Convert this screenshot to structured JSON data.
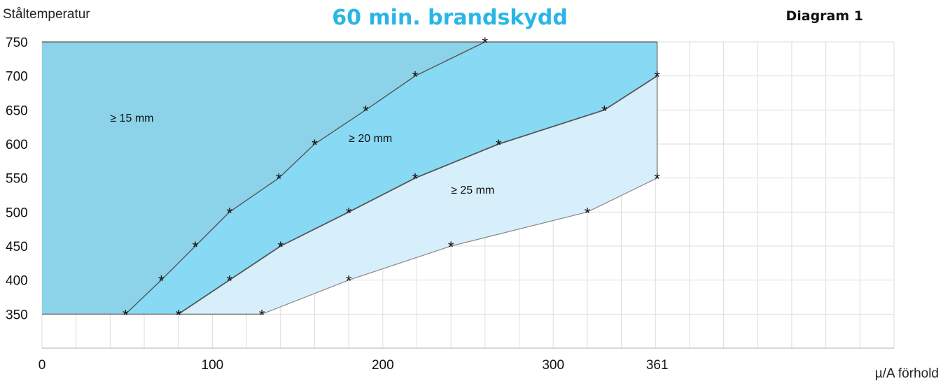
{
  "header": {
    "y_axis_title": "Ståltemperatur",
    "title": "60 min. brandskydd",
    "diagram_label": "Diagram 1",
    "x_axis_title": "µ/A förhold"
  },
  "colors": {
    "region_15": "#8cd2e8",
    "region_20": "#88d9f3",
    "region_25": "#d7eefb",
    "grid": "#dddddd",
    "line": "#555555",
    "title": "#29b6e6"
  },
  "chart_data": {
    "type": "area",
    "title": "60 min. brandskydd",
    "xlabel": "µ/A förhold",
    "ylabel": "Ståltemperatur",
    "xlim": [
      0,
      500
    ],
    "ylim": [
      300,
      750
    ],
    "x_ticks": [
      0,
      100,
      200,
      300,
      361
    ],
    "y_ticks": [
      350,
      400,
      450,
      500,
      550,
      600,
      650,
      700,
      750
    ],
    "grid": true,
    "series": [
      {
        "name": "≥ 15 mm",
        "points": [
          [
            49,
            350
          ],
          [
            70,
            400
          ],
          [
            90,
            450
          ],
          [
            110,
            500
          ],
          [
            139,
            550
          ],
          [
            160,
            600
          ],
          [
            190,
            650
          ],
          [
            219,
            700
          ],
          [
            260,
            750
          ]
        ]
      },
      {
        "name": "≥ 20 mm",
        "points": [
          [
            80,
            350
          ],
          [
            110,
            400
          ],
          [
            140,
            450
          ],
          [
            180,
            500
          ],
          [
            219,
            550
          ],
          [
            268,
            600
          ],
          [
            330,
            650
          ],
          [
            361,
            700
          ]
        ]
      },
      {
        "name": "≥ 25 mm",
        "points": [
          [
            129,
            350
          ],
          [
            180,
            400
          ],
          [
            240,
            450
          ],
          [
            320,
            500
          ],
          [
            361,
            550
          ]
        ]
      }
    ]
  }
}
